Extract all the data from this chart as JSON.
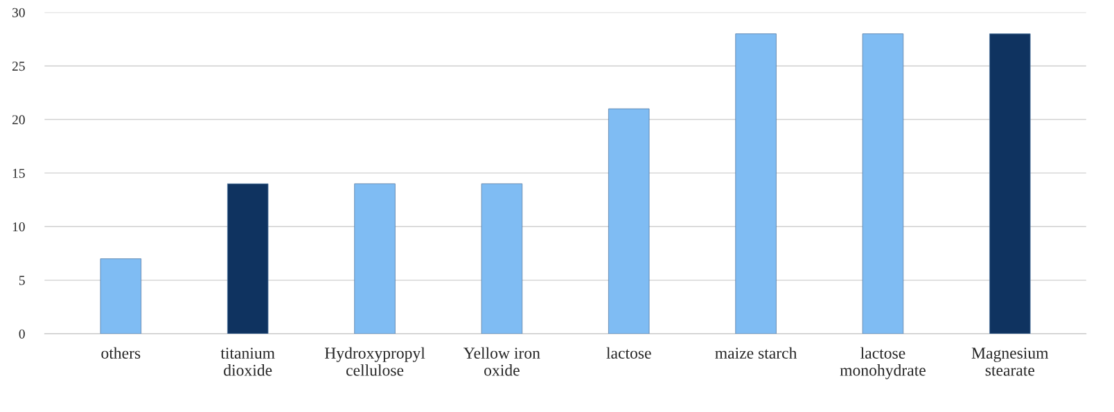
{
  "chart_data": {
    "type": "bar",
    "categories": [
      "others",
      "titanium\ndioxide",
      "Hydroxypropyl\ncellulose",
      "Yellow iron\noxide",
      "lactose",
      "maize starch",
      "lactose\nmonohydrate",
      "Magnesium\nstearate"
    ],
    "values": [
      7,
      14,
      14,
      14,
      21,
      28,
      28,
      28
    ],
    "colors": [
      "#7fbcf3",
      "#0f3360",
      "#7fbcf3",
      "#7fbcf3",
      "#7fbcf3",
      "#7fbcf3",
      "#7fbcf3",
      "#0f3360"
    ],
    "ylim": [
      0,
      30
    ],
    "yticks": [
      0,
      5,
      10,
      15,
      20,
      25,
      30
    ],
    "grid": "y"
  }
}
